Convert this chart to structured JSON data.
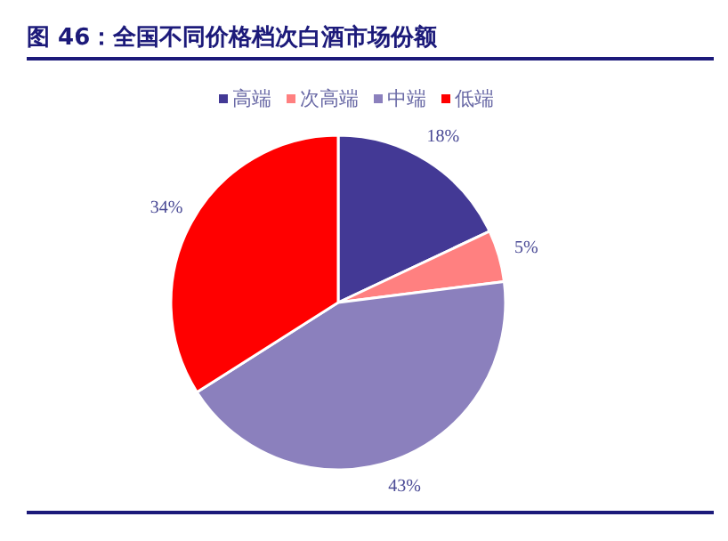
{
  "chart_data": {
    "type": "pie",
    "title": "图 46：全国不同价格档次白酒市场份额",
    "categories": [
      "高端",
      "次高端",
      "中端",
      "低端"
    ],
    "values": [
      18,
      5,
      43,
      34
    ],
    "value_labels": [
      "18%",
      "5%",
      "43%",
      "34%"
    ],
    "colors": [
      "#433995",
      "#ff8080",
      "#8b80bd",
      "#ff0000"
    ],
    "legend": "top"
  }
}
